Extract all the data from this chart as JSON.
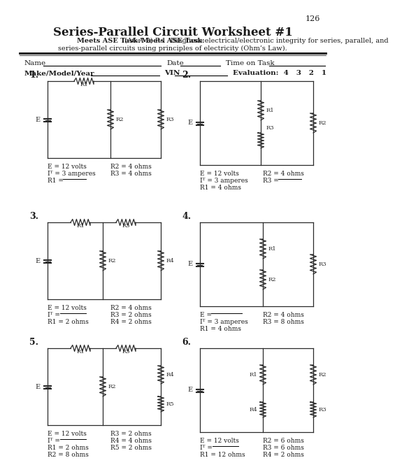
{
  "page_number": "126",
  "title": "Series-Parallel Circuit Worksheet #1",
  "subtitle_bold": "Meets ASE Task:",
  "subtitle_rest": " (A6-A-2) P-1  Diagnose electrical/electronic integrity for series, parallel, and",
  "subtitle_line2": "series-parallel circuits using principles of electricity (Ohm’s Law).",
  "bg_color": "#ffffff",
  "text_color": "#1a1a1a",
  "circuit_color": "#2a2a2a"
}
